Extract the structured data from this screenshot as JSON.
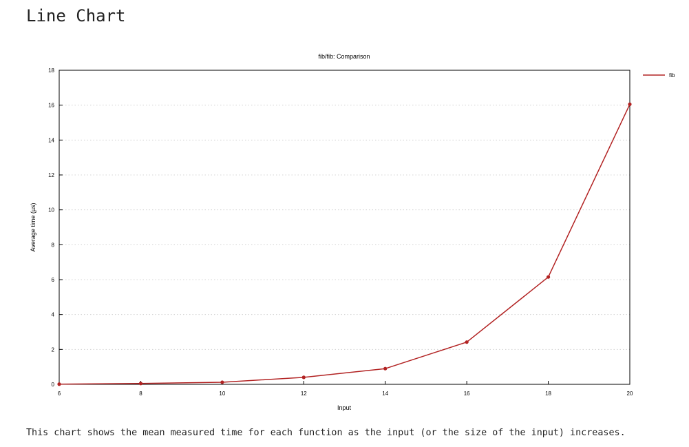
{
  "page": {
    "heading": "Line Chart",
    "description": "This chart shows the mean measured time for each function as the input (or the size of the input) increases."
  },
  "chart_data": {
    "type": "line",
    "title": "fib/fib: Comparison",
    "xlabel": "Input",
    "ylabel": "Average time (µs)",
    "xlim": [
      6,
      20
    ],
    "ylim": [
      0,
      18
    ],
    "x_ticks": [
      6,
      8,
      10,
      12,
      14,
      16,
      18,
      20
    ],
    "y_ticks": [
      0,
      2,
      4,
      6,
      8,
      10,
      12,
      14,
      16,
      18
    ],
    "grid": "horizontal dotted",
    "legend_position": "right",
    "series": [
      {
        "name": "fib",
        "color": "#b22222",
        "points": [
          {
            "x": 6,
            "y": 0.01
          },
          {
            "x": 8,
            "y": 0.05
          },
          {
            "x": 10,
            "y": 0.12
          },
          {
            "x": 12,
            "y": 0.4
          },
          {
            "x": 14,
            "y": 0.9
          },
          {
            "x": 16,
            "y": 2.42
          },
          {
            "x": 18,
            "y": 6.15
          },
          {
            "x": 20,
            "y": 16.05
          }
        ]
      }
    ]
  }
}
